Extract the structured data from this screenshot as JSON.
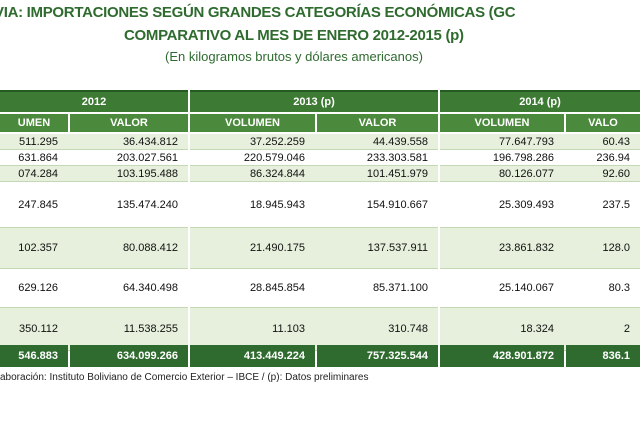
{
  "title_line1": "VIA: IMPORTACIONES SEGÚN GRANDES CATEGORÍAS ECONÓMICAS (GC",
  "title_line2": "COMPARATIVO AL MES DE ENERO 2012-2015 (p)",
  "subtitle": "(En kilogramos brutos y dólares americanos)",
  "years": [
    "2012",
    "2013 (p)",
    "2014 (p)"
  ],
  "headers": {
    "c0": "UMEN",
    "c1": "VALOR",
    "c2": "VOLUMEN",
    "c3": "VALOR",
    "c4": "VOLUMEN",
    "c5": "VALO"
  },
  "rows": [
    [
      "511.295",
      "36.434.812",
      "37.252.259",
      "44.439.558",
      "77.647.793",
      "60.43"
    ],
    [
      "631.864",
      "203.027.561",
      "220.579.046",
      "233.303.581",
      "196.798.286",
      "236.94"
    ],
    [
      "074.284",
      "103.195.488",
      "86.324.844",
      "101.451.979",
      "80.126.077",
      "92.60"
    ],
    [
      "247.845",
      "135.474.240",
      "18.945.943",
      "154.910.667",
      "25.309.493",
      "237.5"
    ],
    [
      "102.357",
      "80.088.412",
      "21.490.175",
      "137.537.911",
      "23.861.832",
      "128.0"
    ],
    [
      "629.126",
      "64.340.498",
      "28.845.854",
      "85.371.100",
      "25.140.067",
      "80.3"
    ],
    [
      "350.112",
      "11.538.255",
      "11.103",
      "310.748",
      "18.324",
      "2"
    ]
  ],
  "totals": [
    "546.883",
    "634.099.266",
    "413.449.224",
    "757.325.544",
    "428.901.872",
    "836.1"
  ],
  "footnote": "aboración: Instituto Boliviano de Comercio Exterior – IBCE / (p): Datos preliminares"
}
